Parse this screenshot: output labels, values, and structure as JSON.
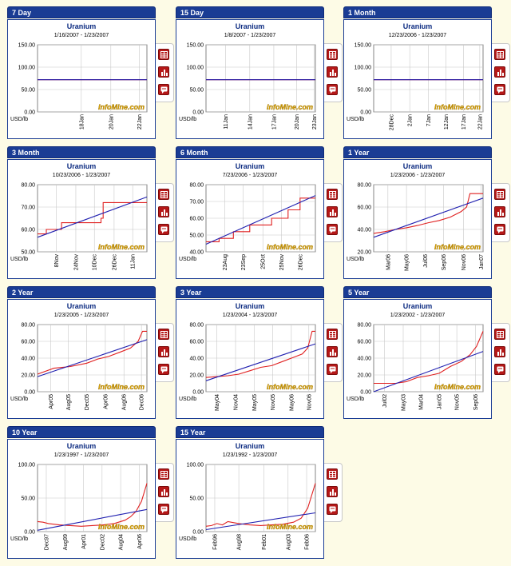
{
  "chart_data": [
    {
      "type": "line",
      "panel": "7 Day",
      "title": "Uranium",
      "subtitle": "1/16/2007 - 1/23/2007",
      "ylabel": "USD/lb",
      "ylim": [
        0,
        150
      ],
      "yticks": [
        "0.00",
        "50.00",
        "100.00",
        "150.00"
      ],
      "xticks": [
        "18Jan",
        "20Jan",
        "22Jan"
      ],
      "xtick_pos": [
        0.4,
        0.67,
        0.93
      ],
      "watermark": "InfoMine.com",
      "series": [
        {
          "color": "#e02020",
          "x": [
            0,
            1
          ],
          "y": [
            72,
            72
          ]
        },
        {
          "color": "#2020b0",
          "x": [
            0,
            1
          ],
          "y": [
            72,
            72
          ]
        }
      ]
    },
    {
      "type": "line",
      "panel": "15 Day",
      "title": "Uranium",
      "subtitle": "1/8/2007 - 1/23/2007",
      "ylabel": "USD/lb",
      "ylim": [
        0,
        150
      ],
      "yticks": [
        "0.00",
        "50.00",
        "100.00",
        "150.00"
      ],
      "xticks": [
        "11Jan",
        "14Jan",
        "17Jan",
        "20Jan",
        "23Jan"
      ],
      "xtick_pos": [
        0.18,
        0.4,
        0.62,
        0.83,
        0.99
      ],
      "watermark": "InfoMine.com",
      "series": [
        {
          "color": "#e02020",
          "x": [
            0,
            1
          ],
          "y": [
            72,
            72
          ]
        },
        {
          "color": "#2020b0",
          "x": [
            0,
            1
          ],
          "y": [
            72,
            72
          ]
        }
      ]
    },
    {
      "type": "line",
      "panel": "1 Month",
      "title": "Uranium",
      "subtitle": "12/23/2006 - 1/23/2007",
      "ylabel": "USD/lb",
      "ylim": [
        0,
        150
      ],
      "yticks": [
        "0.00",
        "50.00",
        "100.00",
        "150.00"
      ],
      "xticks": [
        "28Dec",
        "2Jan",
        "7Jan",
        "12Jan",
        "17Jan",
        "22Jan"
      ],
      "xtick_pos": [
        0.16,
        0.33,
        0.5,
        0.66,
        0.82,
        0.97
      ],
      "watermark": "InfoMine.com",
      "series": [
        {
          "color": "#e02020",
          "x": [
            0,
            1
          ],
          "y": [
            72,
            72
          ]
        },
        {
          "color": "#2020b0",
          "x": [
            0,
            1
          ],
          "y": [
            72,
            72
          ]
        }
      ]
    },
    {
      "type": "line",
      "panel": "3 Month",
      "title": "Uranium",
      "subtitle": "10/23/2006 - 1/23/2007",
      "ylabel": "USD/lb",
      "ylim": [
        50,
        80
      ],
      "yticks": [
        "50.00",
        "60.00",
        "70.00",
        "80.00"
      ],
      "xticks": [
        "8Nov",
        "24Nov",
        "10Dec",
        "26Dec",
        "11Jan"
      ],
      "xtick_pos": [
        0.17,
        0.35,
        0.52,
        0.7,
        0.87
      ],
      "watermark": "InfoMine.com",
      "series": [
        {
          "color": "#e02020",
          "x": [
            0,
            0.08,
            0.08,
            0.22,
            0.22,
            0.4,
            0.4,
            0.58,
            0.58,
            0.6,
            0.6,
            1
          ],
          "y": [
            58,
            58,
            60,
            60,
            63,
            63,
            63,
            63,
            65,
            65,
            72,
            72
          ]
        },
        {
          "color": "#2020b0",
          "x": [
            0,
            1
          ],
          "y": [
            56.5,
            74.5
          ]
        }
      ]
    },
    {
      "type": "line",
      "panel": "6 Month",
      "title": "Uranium",
      "subtitle": "7/23/2006 - 1/23/2007",
      "ylabel": "USD/lb",
      "ylim": [
        40,
        80
      ],
      "yticks": [
        "40.00",
        "50.00",
        "60.00",
        "70.00",
        "80.00"
      ],
      "xticks": [
        "23Aug",
        "23Sep",
        "25Oct",
        "25Nov",
        "26Dec"
      ],
      "xtick_pos": [
        0.17,
        0.34,
        0.52,
        0.69,
        0.86
      ],
      "watermark": "InfoMine.com",
      "series": [
        {
          "color": "#e02020",
          "x": [
            0,
            0.12,
            0.12,
            0.25,
            0.25,
            0.4,
            0.4,
            0.5,
            0.5,
            0.6,
            0.6,
            0.75,
            0.75,
            0.86,
            0.86,
            1
          ],
          "y": [
            46,
            46,
            48,
            48,
            52,
            52,
            56,
            56,
            56,
            56,
            60,
            60,
            65,
            65,
            72,
            72
          ]
        },
        {
          "color": "#2020b0",
          "x": [
            0,
            1
          ],
          "y": [
            44.5,
            73.5
          ]
        }
      ]
    },
    {
      "type": "line",
      "panel": "1 Year",
      "title": "Uranium",
      "subtitle": "1/23/2006 - 1/23/2007",
      "ylabel": "USD/lb",
      "ylim": [
        20,
        80
      ],
      "yticks": [
        "20.00",
        "40.00",
        "60.00",
        "80.00"
      ],
      "xticks": [
        "Mar06",
        "May06",
        "Jul06",
        "Sep06",
        "Nov06",
        "Jan07"
      ],
      "xtick_pos": [
        0.13,
        0.3,
        0.47,
        0.64,
        0.82,
        0.98
      ],
      "watermark": "InfoMine.com",
      "series": [
        {
          "color": "#e02020",
          "x": [
            0,
            0.1,
            0.2,
            0.3,
            0.4,
            0.5,
            0.6,
            0.7,
            0.8,
            0.85,
            0.88,
            1
          ],
          "y": [
            36.5,
            38,
            40,
            41.5,
            43.5,
            46,
            48,
            51,
            56,
            60,
            72,
            72
          ]
        },
        {
          "color": "#2020b0",
          "x": [
            0,
            1
          ],
          "y": [
            33,
            68
          ]
        }
      ]
    },
    {
      "type": "line",
      "panel": "2 Year",
      "title": "Uranium",
      "subtitle": "1/23/2005 - 1/23/2007",
      "ylabel": "USD/lb",
      "ylim": [
        0,
        80
      ],
      "yticks": [
        "0.00",
        "20.00",
        "40.00",
        "60.00",
        "80.00"
      ],
      "xticks": [
        "Apr05",
        "Aug05",
        "Dec05",
        "Apr06",
        "Aug06",
        "Dec06"
      ],
      "xtick_pos": [
        0.12,
        0.28,
        0.45,
        0.62,
        0.79,
        0.95
      ],
      "watermark": "InfoMine.com",
      "series": [
        {
          "color": "#e02020",
          "x": [
            0,
            0.15,
            0.3,
            0.45,
            0.55,
            0.65,
            0.75,
            0.85,
            0.92,
            0.96,
            1
          ],
          "y": [
            21,
            28,
            30,
            34,
            39,
            42,
            47,
            52,
            60,
            72,
            72
          ]
        },
        {
          "color": "#2020b0",
          "x": [
            0,
            1
          ],
          "y": [
            18,
            62
          ]
        }
      ]
    },
    {
      "type": "line",
      "panel": "3 Year",
      "title": "Uranium",
      "subtitle": "1/23/2004 - 1/23/2007",
      "ylabel": "USD/lb",
      "ylim": [
        0,
        80
      ],
      "yticks": [
        "0.00",
        "20.00",
        "40.00",
        "60.00",
        "80.00"
      ],
      "xticks": [
        "May04",
        "Nov04",
        "May05",
        "Nov05",
        "May06",
        "Nov06"
      ],
      "xtick_pos": [
        0.1,
        0.27,
        0.44,
        0.61,
        0.78,
        0.94
      ],
      "watermark": "InfoMine.com",
      "series": [
        {
          "color": "#e02020",
          "x": [
            0,
            0.1,
            0.2,
            0.3,
            0.4,
            0.5,
            0.6,
            0.7,
            0.8,
            0.88,
            0.93,
            0.97,
            1
          ],
          "y": [
            17,
            18,
            19,
            21,
            25,
            29,
            31,
            36,
            41,
            45,
            52,
            72,
            72
          ]
        },
        {
          "color": "#2020b0",
          "x": [
            0,
            1
          ],
          "y": [
            13,
            57
          ]
        }
      ]
    },
    {
      "type": "line",
      "panel": "5 Year",
      "title": "Uranium",
      "subtitle": "1/23/2002 - 1/23/2007",
      "ylabel": "USD/lb",
      "ylim": [
        0,
        80
      ],
      "yticks": [
        "0.00",
        "20.00",
        "40.00",
        "60.00",
        "80.00"
      ],
      "xticks": [
        "Jul02",
        "May03",
        "Mar04",
        "Jan05",
        "Nov05",
        "Sep06"
      ],
      "xtick_pos": [
        0.1,
        0.27,
        0.43,
        0.6,
        0.76,
        0.93
      ],
      "watermark": "InfoMine.com",
      "series": [
        {
          "color": "#e02020",
          "x": [
            0,
            0.2,
            0.3,
            0.4,
            0.5,
            0.6,
            0.7,
            0.8,
            0.88,
            0.94,
            1
          ],
          "y": [
            10,
            10,
            12,
            17,
            19,
            22,
            30,
            36,
            44,
            54,
            72
          ]
        },
        {
          "color": "#2020b0",
          "x": [
            0,
            1
          ],
          "y": [
            0,
            48
          ]
        }
      ]
    },
    {
      "type": "line",
      "panel": "10 Year",
      "title": "Uranium",
      "subtitle": "1/23/1997 - 1/23/2007",
      "ylabel": "USD/lb",
      "ylim": [
        0,
        100
      ],
      "yticks": [
        "0.00",
        "50.00",
        "100.00"
      ],
      "xticks": [
        "Dec97",
        "Aug99",
        "Apr01",
        "Dec02",
        "Aug04",
        "Apr06"
      ],
      "xtick_pos": [
        0.08,
        0.25,
        0.42,
        0.59,
        0.76,
        0.93
      ],
      "watermark": "InfoMine.com",
      "series": [
        {
          "color": "#e02020",
          "x": [
            0,
            0.05,
            0.1,
            0.2,
            0.3,
            0.4,
            0.5,
            0.6,
            0.7,
            0.8,
            0.85,
            0.9,
            0.95,
            1
          ],
          "y": [
            15,
            14,
            12,
            10,
            9,
            8,
            9,
            10,
            12,
            17,
            22,
            30,
            45,
            72
          ]
        },
        {
          "color": "#2020b0",
          "x": [
            0,
            1
          ],
          "y": [
            2,
            33
          ]
        }
      ]
    },
    {
      "type": "line",
      "panel": "15 Year",
      "title": "Uranium",
      "subtitle": "1/23/1992 - 1/23/2007",
      "ylabel": "USD/lb",
      "ylim": [
        0,
        100
      ],
      "yticks": [
        "0.00",
        "50.00",
        "100.00"
      ],
      "xticks": [
        "Feb96",
        "Aug98",
        "Feb01",
        "Aug03",
        "Feb06"
      ],
      "xtick_pos": [
        0.08,
        0.3,
        0.53,
        0.75,
        0.92
      ],
      "watermark": "InfoMine.com",
      "series": [
        {
          "color": "#e02020",
          "x": [
            0,
            0.05,
            0.1,
            0.15,
            0.2,
            0.3,
            0.4,
            0.5,
            0.6,
            0.7,
            0.8,
            0.87,
            0.93,
            1
          ],
          "y": [
            8,
            9,
            12,
            10,
            15,
            12,
            10,
            9,
            10,
            11,
            14,
            20,
            35,
            72
          ]
        },
        {
          "color": "#2020b0",
          "x": [
            0,
            1
          ],
          "y": [
            3,
            28
          ]
        }
      ]
    }
  ],
  "sidebar_icons": [
    "table-icon",
    "bar-chart-icon",
    "info-icon"
  ]
}
